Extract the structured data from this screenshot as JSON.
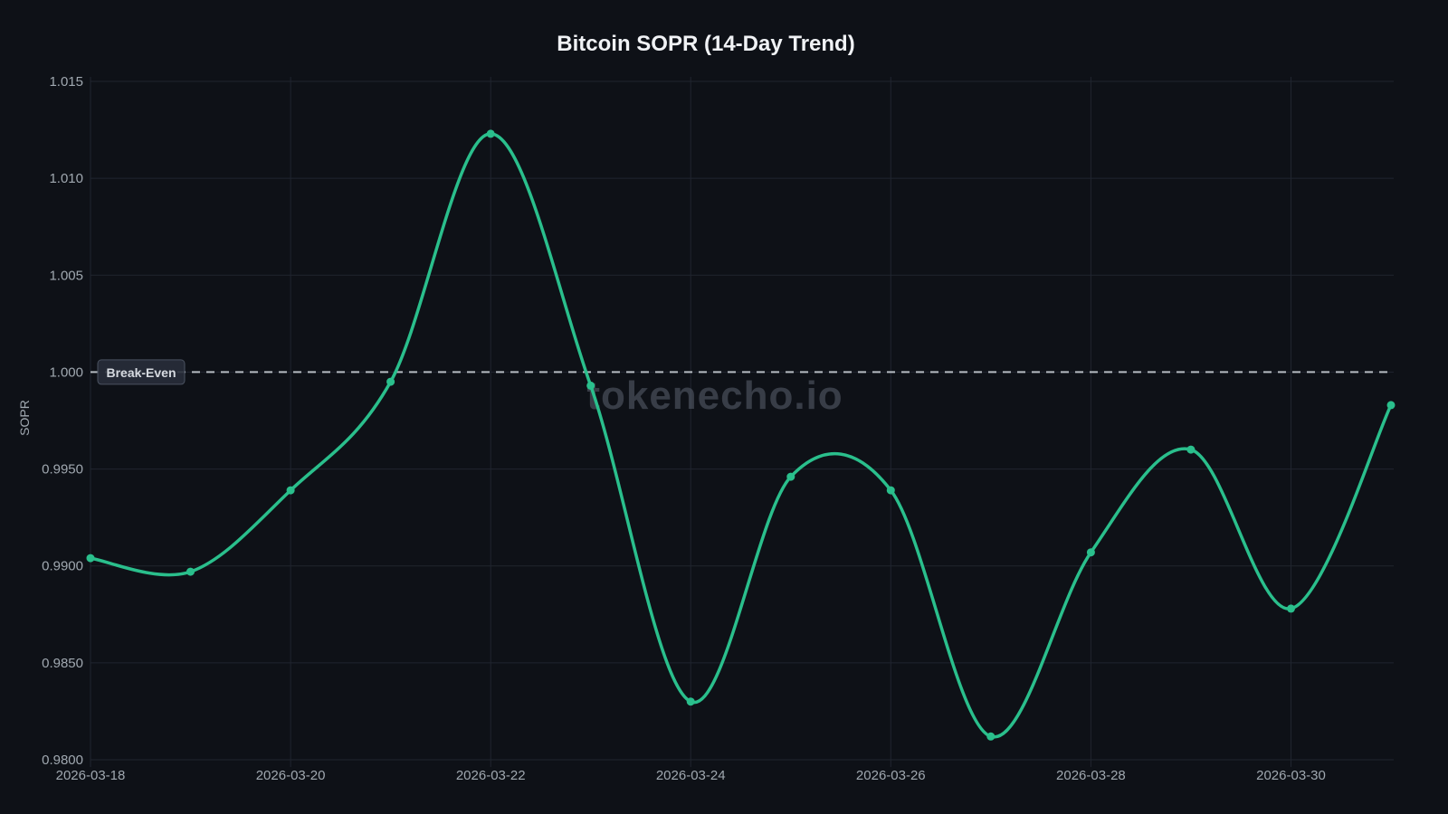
{
  "chart": {
    "title": "Bitcoin SOPR (14-Day Trend)",
    "watermark": "tokenecho.io",
    "ylabel": "SOPR",
    "break_even_label": "Break-Even",
    "colors": {
      "background": "#0e1117",
      "line": "#2abf8c",
      "point": "#2abf8c",
      "grid": "#20252f",
      "dashed_line": "#c8cdd4",
      "tick_text": "#a0a8b0",
      "title_text": "#f0f2f5",
      "watermark_text": "#6b7482",
      "badge_bg": "#282e3a",
      "badge_border": "#4a5260",
      "badge_text": "#d6dae0"
    }
  },
  "chart_data": {
    "type": "line",
    "title": "Bitcoin SOPR (14-Day Trend)",
    "xlabel": "",
    "ylabel": "SOPR",
    "x": [
      "2026-03-18",
      "2026-03-19",
      "2026-03-20",
      "2026-03-21",
      "2026-03-22",
      "2026-03-23",
      "2026-03-24",
      "2026-03-25",
      "2026-03-26",
      "2026-03-27",
      "2026-03-28",
      "2026-03-29",
      "2026-03-30",
      "2026-03-31"
    ],
    "values": [
      0.9904,
      0.9897,
      0.9939,
      0.9995,
      1.0123,
      0.9993,
      0.983,
      0.9946,
      0.9939,
      0.9812,
      0.9907,
      0.996,
      0.9878,
      0.9983
    ],
    "ylim": [
      0.9785,
      1.0155
    ],
    "grid": true,
    "legend": "none",
    "line_style": "smooth-spline-with-markers",
    "yticks": [
      {
        "value": 1.015,
        "label": "1.015"
      },
      {
        "value": 1.01,
        "label": "1.010"
      },
      {
        "value": 1.005,
        "label": "1.005"
      },
      {
        "value": 1.0,
        "label": "1.000"
      },
      {
        "value": 0.995,
        "label": "0.9950"
      },
      {
        "value": 0.99,
        "label": "0.9900"
      },
      {
        "value": 0.985,
        "label": "0.9850"
      },
      {
        "value": 0.98,
        "label": "0.9800"
      }
    ],
    "xticks": [
      {
        "index": 0,
        "label": "2026-03-18"
      },
      {
        "index": 2,
        "label": "2026-03-20"
      },
      {
        "index": 4,
        "label": "2026-03-22"
      },
      {
        "index": 6,
        "label": "2026-03-24"
      },
      {
        "index": 8,
        "label": "2026-03-26"
      },
      {
        "index": 10,
        "label": "2026-03-28"
      },
      {
        "index": 12,
        "label": "2026-03-30"
      }
    ],
    "annotations": [
      {
        "type": "hline",
        "y": 1.0,
        "label": "Break-Even",
        "style": "dashed"
      }
    ]
  }
}
